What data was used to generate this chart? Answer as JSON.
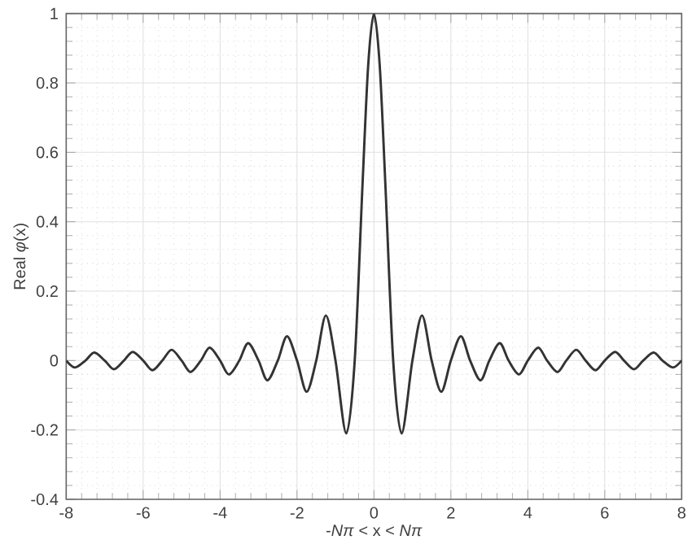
{
  "chart_data": {
    "type": "line",
    "xlabel": "-*Nπ* < x < *Nπ*",
    "ylabel": "Real *φ*(x)",
    "x": [
      -8,
      -7.77,
      -7.5,
      -7.27,
      -7,
      -6.76,
      -6.5,
      -6.27,
      -6,
      -5.76,
      -5.5,
      -5.26,
      -5,
      -4.77,
      -4.5,
      -4.27,
      -4,
      -3.77,
      -3.5,
      -3.27,
      -3,
      -2.77,
      -2.5,
      -2.26,
      -2,
      -1.75,
      -1.5,
      -1.25,
      -1,
      -0.72,
      -0.5,
      -0.3,
      -0.15,
      0,
      0.15,
      0.3,
      0.5,
      0.72,
      1,
      1.25,
      1.5,
      1.75,
      2,
      2.26,
      2.5,
      2.77,
      3,
      3.27,
      3.5,
      3.77,
      4,
      4.27,
      4.5,
      4.77,
      5,
      5.26,
      5.5,
      5.76,
      6,
      6.27,
      6.5,
      6.76,
      7,
      7.27,
      7.5,
      7.77,
      8
    ],
    "series": [
      {
        "color": "#333333",
        "values": [
          0,
          -0.02,
          0,
          0.023,
          0,
          -0.025,
          0,
          0.025,
          0,
          -0.028,
          0,
          0.031,
          0,
          -0.033,
          0,
          0.037,
          0,
          -0.04,
          0,
          0.05,
          0,
          -0.057,
          0,
          0.07,
          0,
          -0.09,
          0,
          0.13,
          0,
          -0.21,
          0,
          0.5,
          0.85,
          1,
          0.85,
          0.5,
          0,
          -0.21,
          0,
          0.13,
          0,
          -0.09,
          0,
          0.07,
          0,
          -0.057,
          0,
          0.05,
          0,
          -0.04,
          0,
          0.037,
          0,
          -0.033,
          0,
          0.031,
          0,
          -0.028,
          0,
          0.025,
          0,
          -0.025,
          0,
          0.023,
          0,
          -0.02,
          0
        ]
      }
    ],
    "xlim": [
      -8,
      8
    ],
    "ylim": [
      -0.4,
      1
    ],
    "xticks": [
      -8,
      -6,
      -4,
      -2,
      0,
      2,
      4,
      6,
      8
    ],
    "yticks": [
      -0.4,
      -0.2,
      0,
      0.2,
      0.4,
      0.6,
      0.8,
      1
    ],
    "grid": true,
    "marker": "none",
    "line_style": "solid"
  }
}
